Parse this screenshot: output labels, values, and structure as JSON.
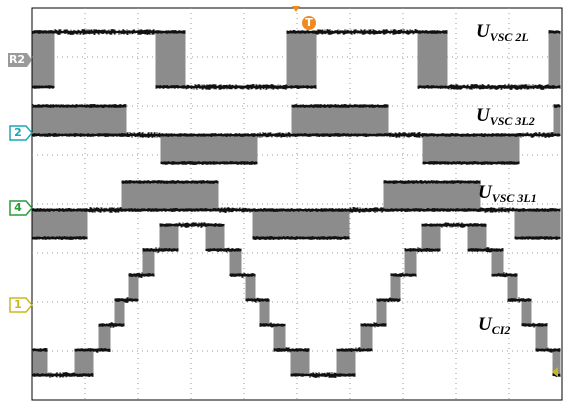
{
  "traces": [
    {
      "marker": "R2",
      "label": "U",
      "subscript": "VSC 2L"
    },
    {
      "marker": "2",
      "label": "U",
      "subscript": "VSC 3L2"
    },
    {
      "marker": "4",
      "label": "U",
      "subscript": "VSC 3L1"
    },
    {
      "marker": "1",
      "label": "U",
      "subscript": "CI2"
    }
  ],
  "trigger": "T"
}
